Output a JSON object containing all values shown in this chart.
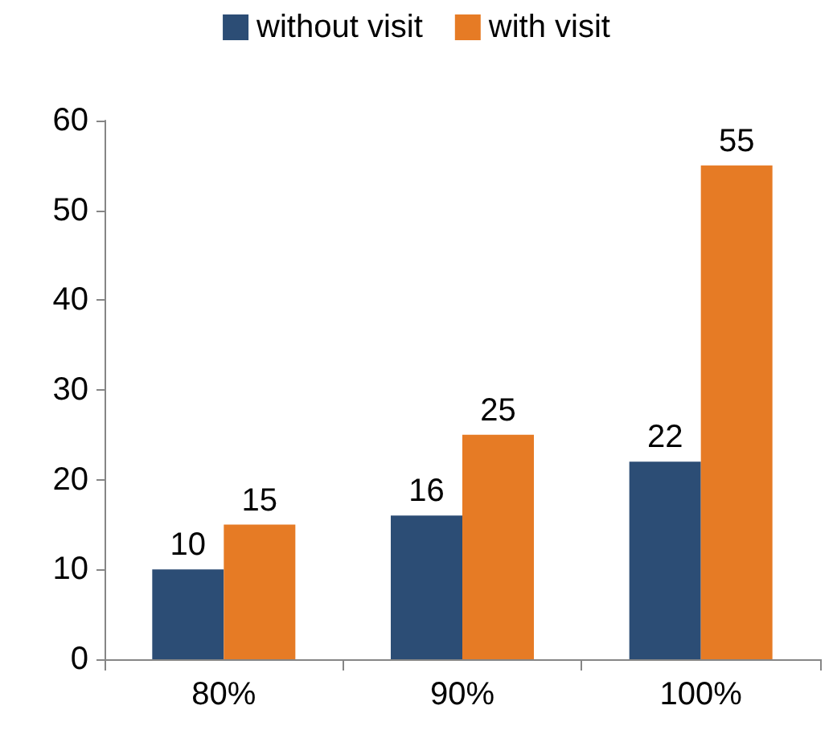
{
  "chart_data": {
    "type": "bar",
    "categories": [
      "80%",
      "90%",
      "100%"
    ],
    "series": [
      {
        "name": "without visit",
        "color": "#2c4d75",
        "values": [
          10,
          16,
          22
        ]
      },
      {
        "name": "with visit",
        "color": "#e67b25",
        "values": [
          15,
          25,
          55
        ]
      }
    ],
    "ylim": [
      0,
      60
    ],
    "yticks": [
      0,
      10,
      20,
      30,
      40,
      50,
      60
    ],
    "grid": false,
    "legend": "top",
    "data_labels": true
  }
}
